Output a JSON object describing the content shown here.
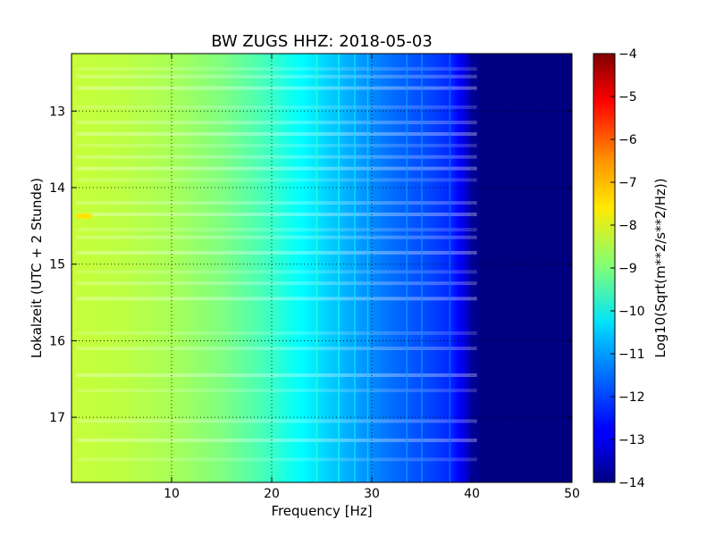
{
  "chart_data": {
    "type": "heatmap",
    "title": "BW ZUGS HHZ: 2018-05-03",
    "xlabel": "Frequency [Hz]",
    "ylabel": "Lokalzeit (UTC + 2 Stunde)",
    "xlim": [
      0,
      50
    ],
    "ylim": [
      12.25,
      17.85
    ],
    "y_inverted": true,
    "xticks": [
      10,
      20,
      30,
      40,
      50
    ],
    "xtick_labels": [
      "10",
      "20",
      "30",
      "40",
      "50"
    ],
    "yticks": [
      13,
      14,
      15,
      16,
      17
    ],
    "ytick_labels": [
      "13",
      "14",
      "15",
      "16",
      "17"
    ],
    "grid": true,
    "colormap": "jet",
    "colorbar": {
      "label": "Log10(Sqrt(m**2/s**2/Hz))",
      "range": [
        -14,
        -4
      ],
      "ticks": [
        -4,
        -5,
        -6,
        -7,
        -8,
        -9,
        -10,
        -11,
        -12,
        -13,
        -14
      ],
      "tick_labels": [
        "−4",
        "−5",
        "−6",
        "−7",
        "−8",
        "−9",
        "−10",
        "−11",
        "−12",
        "−13",
        "−14"
      ]
    },
    "spectrum_profile": {
      "frequency_hz": [
        0,
        5,
        10,
        15,
        18,
        20,
        22,
        25,
        28,
        30,
        33,
        36,
        38,
        39,
        40,
        41,
        50
      ],
      "log10_amplitude": [
        -8.3,
        -8.4,
        -8.6,
        -9.0,
        -9.4,
        -9.7,
        -10.1,
        -10.6,
        -11.1,
        -11.4,
        -11.8,
        -12.1,
        -12.4,
        -12.9,
        -13.7,
        -14,
        -14
      ]
    },
    "horizontal_bands_hour": [
      12.45,
      12.55,
      12.7,
      12.95,
      13.15,
      13.3,
      13.45,
      13.6,
      13.75,
      13.9,
      14.2,
      14.35,
      14.55,
      14.65,
      14.85,
      15.1,
      15.25,
      15.45,
      15.9,
      16.1,
      16.45,
      16.65,
      17.05,
      17.3,
      17.55
    ],
    "vertical_lines_hz": [
      24.5,
      26.7,
      28.3,
      29.6,
      33.5,
      35.0,
      37.8
    ],
    "notable_feature": {
      "frequency_range_hz": [
        0.5,
        2.0
      ],
      "hour": 14.37,
      "log10_amplitude": -7.5
    }
  }
}
